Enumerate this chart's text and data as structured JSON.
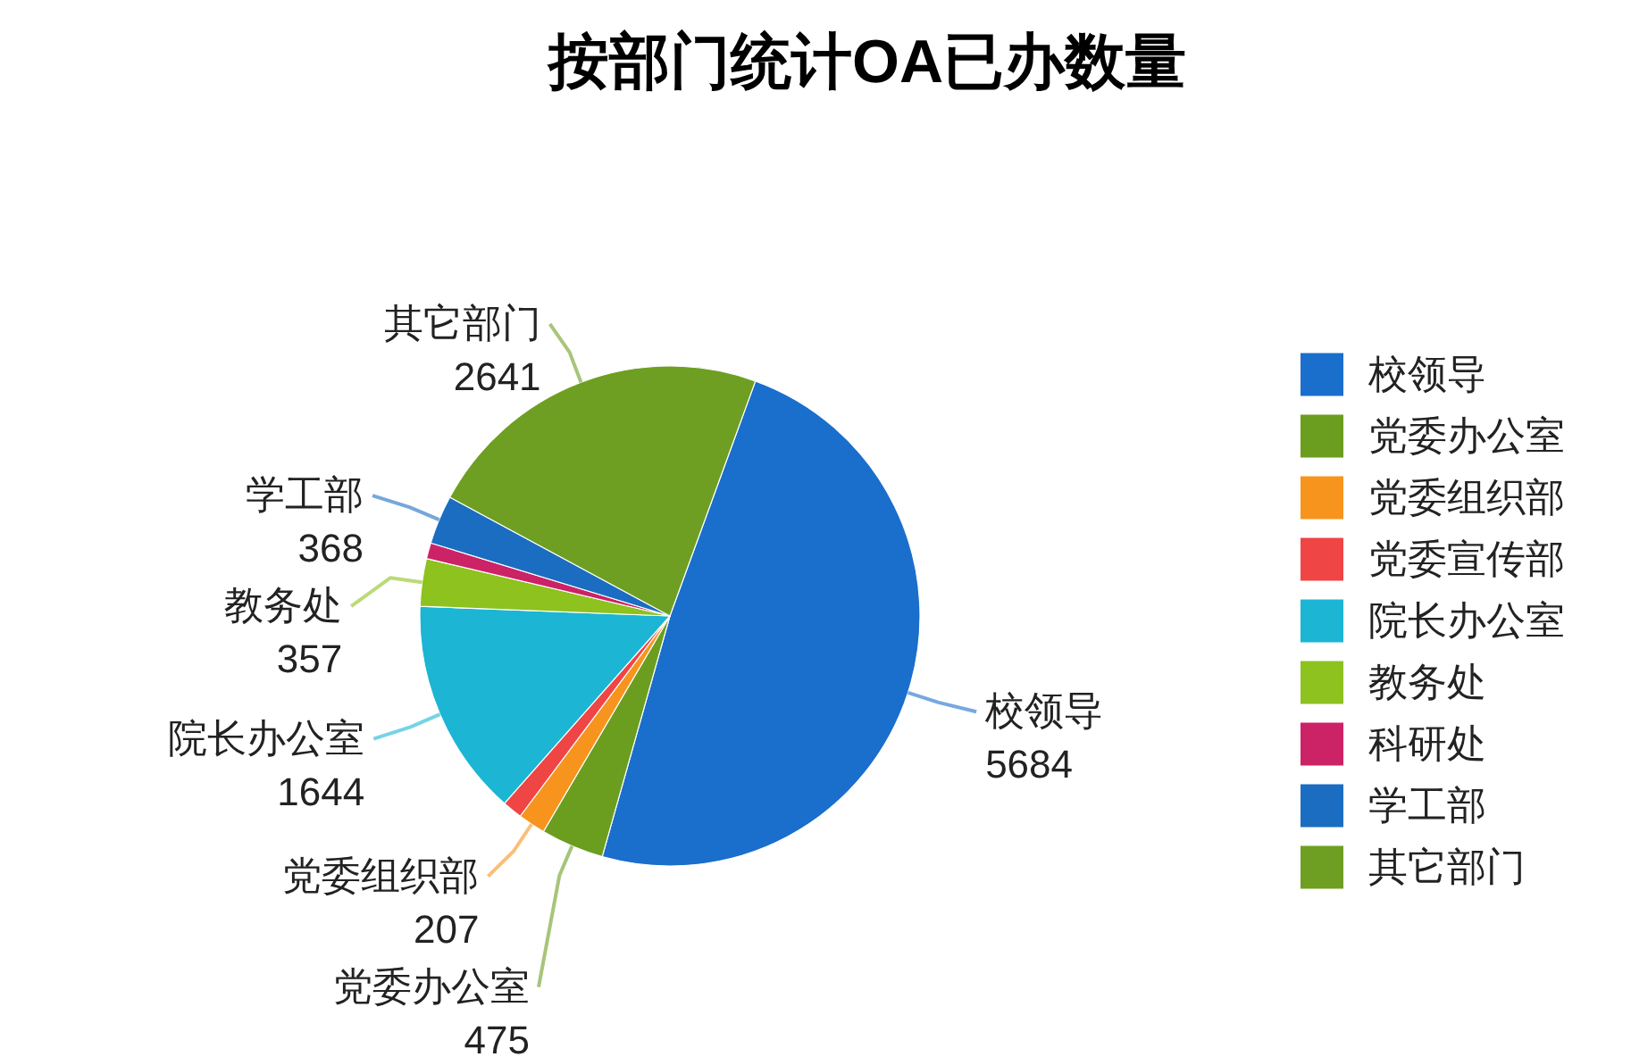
{
  "chart_data": {
    "type": "pie",
    "title": "按部门统计OA已办数量",
    "categories": [
      "校领导",
      "党委办公室",
      "党委组织部",
      "党委宣传部",
      "院长办公室",
      "教务处",
      "科研处",
      "学工部",
      "其它部门"
    ],
    "values": [
      5684,
      475,
      207,
      150,
      1644,
      357,
      120,
      368,
      2641
    ],
    "colors": [
      "#1a6ecc",
      "#6b9e1f",
      "#f7941d",
      "#f04545",
      "#1cb5d4",
      "#8dc21f",
      "#cc2266",
      "#1b6dc1",
      "#6e9f22"
    ],
    "value_labels": [
      "5684",
      "475",
      "207",
      null,
      "1644",
      "357",
      null,
      "368",
      "2641"
    ],
    "legend": "right"
  }
}
